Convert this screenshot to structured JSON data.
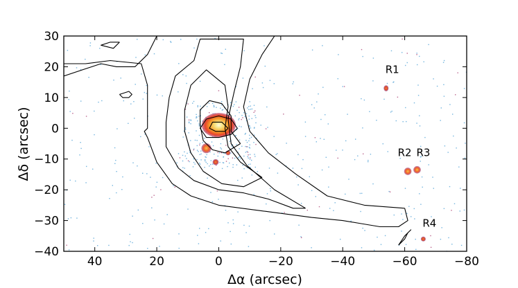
{
  "chart_data": {
    "type": "contour",
    "xlabel": "Δα (arcsec)",
    "ylabel": "Δδ (arcsec)",
    "xlim": [
      50,
      -80
    ],
    "ylim": [
      -40,
      30
    ],
    "xticks": [
      40,
      20,
      0,
      -20,
      -40,
      -60,
      -80
    ],
    "xtick_labels": [
      "40",
      "20",
      "0",
      "−20",
      "−40",
      "−60",
      "−80"
    ],
    "yticks": [
      30,
      20,
      10,
      0,
      -10,
      -20,
      -30,
      -40
    ],
    "ytick_labels": [
      "30",
      "20",
      "10",
      "0",
      "−10",
      "−20",
      "−30",
      "−40"
    ],
    "grid": false,
    "contours": [
      {
        "level": 1,
        "points": [
          [
            -60,
            -26
          ],
          [
            -47,
            -25
          ],
          [
            -35,
            -22
          ],
          [
            -25,
            -15
          ],
          [
            -16,
            -8
          ],
          [
            -10,
            -1
          ],
          [
            -8,
            7
          ],
          [
            -10,
            16
          ],
          [
            -14,
            24
          ],
          [
            -18,
            30
          ],
          [
            20,
            30
          ],
          [
            23,
            24
          ],
          [
            27,
            20
          ],
          [
            33,
            20
          ],
          [
            38,
            21
          ],
          [
            50,
            17
          ],
          [
            50,
            21
          ],
          [
            43,
            21
          ],
          [
            35,
            22
          ],
          [
            25,
            21
          ],
          [
            23,
            14
          ],
          [
            23,
            0
          ],
          [
            24,
            -1
          ],
          [
            23,
            -3
          ],
          [
            20,
            -11
          ],
          [
            15,
            -18
          ],
          [
            9,
            -22
          ],
          [
            0,
            -25
          ],
          [
            -15,
            -27
          ],
          [
            -30,
            -29
          ],
          [
            -40,
            -30
          ],
          [
            -46,
            -31
          ],
          [
            -52,
            -32
          ],
          [
            -58,
            -32
          ],
          [
            -61,
            -30
          ],
          [
            -60,
            -26
          ]
        ]
      },
      {
        "level": 2,
        "points": [
          [
            -28,
            -26
          ],
          [
            -18,
            -20
          ],
          [
            -9,
            -12
          ],
          [
            -4,
            -5
          ],
          [
            -3,
            3
          ],
          [
            -5,
            12
          ],
          [
            -7,
            20
          ],
          [
            -8,
            29
          ],
          [
            6,
            29
          ],
          [
            8,
            22
          ],
          [
            14,
            17
          ],
          [
            16,
            10
          ],
          [
            17,
            2
          ],
          [
            17,
            -6
          ],
          [
            13,
            -13
          ],
          [
            8,
            -17
          ],
          [
            0,
            -20
          ],
          [
            -8,
            -21
          ],
          [
            -16,
            -23
          ],
          [
            -24,
            -26
          ],
          [
            -28,
            -26
          ]
        ]
      },
      {
        "level": 3,
        "points": [
          [
            -14,
            -16
          ],
          [
            -7,
            -11
          ],
          [
            -3,
            -6
          ],
          [
            -2,
            0
          ],
          [
            -3,
            7
          ],
          [
            -2,
            14
          ],
          [
            4,
            19
          ],
          [
            9,
            14
          ],
          [
            11,
            6
          ],
          [
            11,
            -1
          ],
          [
            9,
            -8
          ],
          [
            5,
            -14
          ],
          [
            -1,
            -18
          ],
          [
            -8,
            -19
          ],
          [
            -14,
            -16
          ]
        ]
      },
      {
        "level": 4,
        "points": [
          [
            -7,
            -5
          ],
          [
            -4,
            -1
          ],
          [
            -4,
            4
          ],
          [
            -1,
            8
          ],
          [
            3,
            9
          ],
          [
            6,
            6
          ],
          [
            6,
            1
          ],
          [
            5,
            -4
          ],
          [
            2,
            -7
          ],
          [
            -2,
            -8
          ],
          [
            -7,
            -5
          ]
        ]
      },
      {
        "level": 5,
        "points": [
          [
            -6,
            0
          ],
          [
            -4,
            3
          ],
          [
            0,
            4
          ],
          [
            4,
            3
          ],
          [
            6,
            0
          ],
          [
            4,
            -3
          ],
          [
            0,
            -3
          ],
          [
            -4,
            -2
          ],
          [
            -6,
            0
          ]
        ]
      },
      {
        "level": 6,
        "points": [
          [
            -3,
            0
          ],
          [
            -1,
            2
          ],
          [
            2,
            2
          ],
          [
            3,
            0
          ],
          [
            1,
            -1
          ],
          [
            -2,
            -1
          ],
          [
            -3,
            0
          ]
        ]
      },
      {
        "level": 1,
        "points": [
          [
            32,
            11
          ],
          [
            29,
            12
          ],
          [
            28,
            11
          ],
          [
            29,
            10
          ],
          [
            31,
            10
          ],
          [
            32,
            11
          ]
        ]
      },
      {
        "level": 1,
        "points": [
          [
            32,
            28
          ],
          [
            34,
            26
          ],
          [
            38,
            27
          ],
          [
            35,
            28
          ],
          [
            32,
            28
          ]
        ]
      },
      {
        "level": 1,
        "points": [
          [
            -58,
            -38
          ],
          [
            -60,
            -36
          ],
          [
            -61,
            -34
          ],
          [
            -62,
            -33
          ],
          [
            -60,
            -35
          ],
          [
            -58,
            -38
          ]
        ]
      }
    ],
    "emission_blobs": [
      {
        "x": 0,
        "y": 1,
        "rx": 5.5,
        "ry": 4,
        "intensity": "peak"
      },
      {
        "x": 4,
        "y": -6.5,
        "rx": 1.6,
        "ry": 1.6,
        "intensity": "high"
      },
      {
        "x": 1,
        "y": -11,
        "rx": 1,
        "ry": 1,
        "intensity": "medium"
      },
      {
        "x": -3,
        "y": -8,
        "rx": 0.8,
        "ry": 0.8,
        "intensity": "medium"
      },
      {
        "x": -54,
        "y": 13,
        "rx": 0.8,
        "ry": 1,
        "intensity": "medium"
      },
      {
        "x": -61,
        "y": -14,
        "rx": 1.2,
        "ry": 1.2,
        "intensity": "high"
      },
      {
        "x": -64,
        "y": -13.5,
        "rx": 1.2,
        "ry": 1.2,
        "intensity": "high"
      },
      {
        "x": -66,
        "y": -36,
        "rx": 0.8,
        "ry": 0.8,
        "intensity": "medium"
      }
    ],
    "annotations": [
      {
        "text": "R1",
        "x": -56,
        "y": 18
      },
      {
        "text": "R2",
        "x": -60,
        "y": -9
      },
      {
        "text": "R3",
        "x": -66,
        "y": -9
      },
      {
        "text": "R4",
        "x": -68,
        "y": -32
      }
    ],
    "colors": {
      "contour": "#000000",
      "noise": "#5aa7d8",
      "peak": "#f3e08a",
      "high": "#f57d2b",
      "medium": "#e8442b"
    }
  }
}
